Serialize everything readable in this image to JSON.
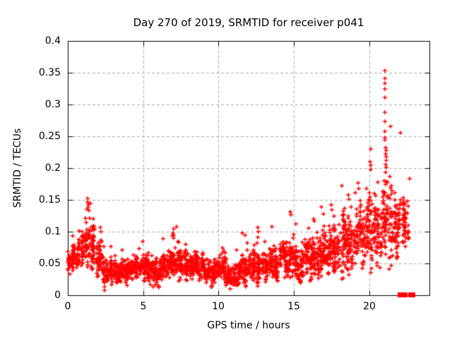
{
  "chart_data": {
    "type": "scatter",
    "title": "Day 270 of 2019, SRMTID for receiver p041",
    "xlabel": "GPS time / hours",
    "ylabel": "SRMTID / TECUs",
    "xlim": [
      0,
      24
    ],
    "ylim": [
      0,
      0.4
    ],
    "xticks": [
      {
        "v": 0,
        "label": "0"
      },
      {
        "v": 5,
        "label": "5"
      },
      {
        "v": 10,
        "label": "10"
      },
      {
        "v": 15,
        "label": "15"
      },
      {
        "v": 20,
        "label": "20"
      }
    ],
    "yticks": [
      {
        "v": 0,
        "label": "0"
      },
      {
        "v": 0.05,
        "label": "0.05"
      },
      {
        "v": 0.1,
        "label": "0.1"
      },
      {
        "v": 0.15,
        "label": "0.15"
      },
      {
        "v": 0.2,
        "label": "0.2"
      },
      {
        "v": 0.25,
        "label": "0.25"
      },
      {
        "v": 0.3,
        "label": "0.3"
      },
      {
        "v": 0.35,
        "label": "0.35"
      },
      {
        "v": 0.4,
        "label": "0.4"
      }
    ],
    "grid": {
      "on": true,
      "style": "dashed",
      "color": "#a8a8a8"
    },
    "border_color": "#000000",
    "text_color": "#000000",
    "legend": "none",
    "marker": {
      "shape": "plus",
      "color": "#ff0000",
      "size": 7
    },
    "zero_marker": {
      "shape": "filled-square",
      "color": "#ff0000",
      "size": 7
    },
    "data_end_hour": 22.72,
    "series": [
      {
        "name": "SRMTID",
        "synthesis": "columnar-band",
        "seed": 42,
        "bands_format": [
          "t_start_hour",
          "center_TECUs",
          "halfwidth_TECUs",
          "n_points"
        ],
        "bands": [
          [
            0.0,
            0.052,
            0.02,
            60
          ],
          [
            0.5,
            0.055,
            0.022,
            60
          ],
          [
            1.0,
            0.075,
            0.035,
            60
          ],
          [
            1.5,
            0.085,
            0.035,
            60
          ],
          [
            2.0,
            0.06,
            0.028,
            60
          ],
          [
            2.5,
            0.04,
            0.018,
            60
          ],
          [
            3.0,
            0.036,
            0.016,
            60
          ],
          [
            3.5,
            0.034,
            0.016,
            60
          ],
          [
            4.0,
            0.04,
            0.018,
            60
          ],
          [
            4.5,
            0.042,
            0.018,
            60
          ],
          [
            5.0,
            0.044,
            0.02,
            60
          ],
          [
            5.5,
            0.044,
            0.02,
            60
          ],
          [
            6.0,
            0.04,
            0.018,
            60
          ],
          [
            6.5,
            0.046,
            0.022,
            60
          ],
          [
            7.0,
            0.048,
            0.022,
            60
          ],
          [
            7.5,
            0.044,
            0.02,
            60
          ],
          [
            8.0,
            0.045,
            0.02,
            60
          ],
          [
            8.5,
            0.048,
            0.022,
            60
          ],
          [
            9.0,
            0.04,
            0.018,
            60
          ],
          [
            9.5,
            0.038,
            0.018,
            60
          ],
          [
            10.0,
            0.04,
            0.02,
            60
          ],
          [
            10.5,
            0.032,
            0.016,
            60
          ],
          [
            11.0,
            0.028,
            0.016,
            60
          ],
          [
            11.5,
            0.038,
            0.022,
            60
          ],
          [
            12.0,
            0.044,
            0.024,
            60
          ],
          [
            12.5,
            0.048,
            0.026,
            60
          ],
          [
            13.0,
            0.044,
            0.024,
            60
          ],
          [
            13.5,
            0.052,
            0.028,
            60
          ],
          [
            14.0,
            0.048,
            0.026,
            60
          ],
          [
            14.5,
            0.058,
            0.032,
            60
          ],
          [
            15.0,
            0.048,
            0.028,
            60
          ],
          [
            15.5,
            0.052,
            0.028,
            60
          ],
          [
            16.0,
            0.058,
            0.032,
            60
          ],
          [
            16.5,
            0.062,
            0.035,
            60
          ],
          [
            17.0,
            0.058,
            0.032,
            60
          ],
          [
            17.5,
            0.068,
            0.038,
            60
          ],
          [
            18.0,
            0.072,
            0.04,
            60
          ],
          [
            18.5,
            0.078,
            0.045,
            60
          ],
          [
            19.0,
            0.085,
            0.048,
            60
          ],
          [
            19.5,
            0.088,
            0.048,
            60
          ],
          [
            20.0,
            0.105,
            0.055,
            60
          ],
          [
            20.5,
            0.098,
            0.05,
            60
          ],
          [
            21.0,
            0.125,
            0.065,
            60
          ],
          [
            21.5,
            0.115,
            0.048,
            60
          ],
          [
            22.0,
            0.105,
            0.04,
            60
          ],
          [
            22.5,
            0.105,
            0.035,
            25
          ]
        ],
        "outliers": [
          [
            1.3,
            0.147
          ],
          [
            1.32,
            0.152
          ],
          [
            1.35,
            0.142
          ],
          [
            1.28,
            0.136
          ],
          [
            2.15,
            0.107
          ],
          [
            2.2,
            0.1
          ],
          [
            7.02,
            0.104
          ],
          [
            7.05,
            0.094
          ],
          [
            11.75,
            0.095
          ],
          [
            12.6,
            0.107
          ],
          [
            12.65,
            0.1
          ],
          [
            13.55,
            0.108
          ],
          [
            14.78,
            0.131
          ],
          [
            14.82,
            0.127
          ],
          [
            16.32,
            0.12
          ],
          [
            16.35,
            0.117
          ],
          [
            16.85,
            0.139
          ],
          [
            17.5,
            0.142
          ],
          [
            17.55,
            0.135
          ],
          [
            18.6,
            0.158
          ],
          [
            18.65,
            0.151
          ],
          [
            19.25,
            0.177
          ],
          [
            19.3,
            0.168
          ],
          [
            20.08,
            0.21
          ],
          [
            20.1,
            0.205
          ],
          [
            20.12,
            0.198
          ],
          [
            21.04,
            0.333
          ],
          [
            21.04,
            0.288
          ],
          [
            21.04,
            0.258
          ],
          [
            21.04,
            0.245
          ],
          [
            21.05,
            0.353
          ],
          [
            21.05,
            0.311
          ],
          [
            21.05,
            0.248
          ],
          [
            21.06,
            0.341
          ],
          [
            21.06,
            0.324
          ],
          [
            21.06,
            0.273
          ],
          [
            21.1,
            0.232
          ],
          [
            21.1,
            0.222
          ],
          [
            21.1,
            0.206
          ],
          [
            21.12,
            0.228
          ],
          [
            21.12,
            0.212
          ],
          [
            21.14,
            0.218
          ],
          [
            21.16,
            0.201
          ],
          [
            21.45,
            0.172
          ],
          [
            21.48,
            0.159
          ],
          [
            21.5,
            0.165
          ],
          [
            22.1,
            0.15
          ],
          [
            22.15,
            0.143
          ],
          [
            22.55,
            0.148
          ],
          [
            22.6,
            0.14
          ],
          [
            22.62,
            0.09
          ]
        ],
        "zero_points_hours": [
          22.04,
          22.37,
          22.72,
          22.89
        ]
      }
    ]
  }
}
